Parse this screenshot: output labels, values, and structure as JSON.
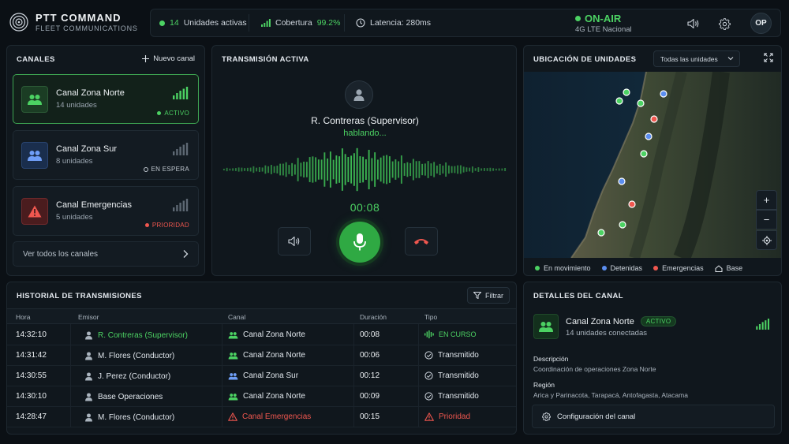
{
  "app": {
    "title": "PTT COMMAND",
    "subtitle": "FLEET COMMUNICATIONS"
  },
  "status": {
    "units_count": "14",
    "units_label": "Unidades activas",
    "coverage_label": "Cobertura",
    "coverage_value": "99.2%",
    "latency_label": "Latencia: 280ms",
    "onair_label": "ON-AIR",
    "network": "4G LTE Nacional",
    "user_initials": "OP"
  },
  "channels": {
    "title": "CANALES",
    "new_label": "Nuevo canal",
    "view_all": "Ver todos los canales",
    "items": [
      {
        "name": "Canal Zona Norte",
        "units": "14 unidades",
        "status": "ACTIVO",
        "state": "active"
      },
      {
        "name": "Canal Zona Sur",
        "units": "8 unidades",
        "status": "EN ESPERA",
        "state": "standby"
      },
      {
        "name": "Canal Emergencias",
        "units": "5 unidades",
        "status": "PRIORIDAD",
        "state": "priority"
      }
    ]
  },
  "transmission": {
    "title": "TRANSMISIÓN ACTIVA",
    "speaker": "R. Contreras (Supervisor)",
    "speaker_status": "hablando...",
    "timer": "00:08"
  },
  "map": {
    "title": "UBICACIÓN DE UNIDADES",
    "filter": "Todas las unidades",
    "legend": [
      {
        "label": "En movimiento",
        "color": "#4cd263"
      },
      {
        "label": "Detenidas",
        "color": "#5b8ef0"
      },
      {
        "label": "Emergencias",
        "color": "#f0574f"
      },
      {
        "label": "Base",
        "icon": "home-icon"
      }
    ]
  },
  "history": {
    "title": "HISTORIAL DE TRANSMISIONES",
    "filter_label": "Filtrar",
    "columns": [
      "Hora",
      "Emisor",
      "Canal",
      "Duración",
      "Tipo"
    ],
    "rows": [
      {
        "time": "14:32:10",
        "sender": "R. Contreras (Supervisor)",
        "channel": "Canal Zona Norte",
        "duration": "00:08",
        "type": "EN CURSO",
        "kind": "live"
      },
      {
        "time": "14:31:42",
        "sender": "M. Flores (Conductor)",
        "channel": "Canal Zona Norte",
        "duration": "00:06",
        "type": "Transmitido",
        "kind": "done"
      },
      {
        "time": "14:30:55",
        "sender": "J. Perez (Conductor)",
        "channel": "Canal Zona Sur",
        "duration": "00:12",
        "type": "Transmitido",
        "kind": "done"
      },
      {
        "time": "14:30:10",
        "sender": "Base Operaciones",
        "channel": "Canal Zona Norte",
        "duration": "00:09",
        "type": "Transmitido",
        "kind": "done"
      },
      {
        "time": "14:28:47",
        "sender": "M. Flores (Conductor)",
        "channel": "Canal Emergencias",
        "duration": "00:15",
        "type": "Prioridad",
        "kind": "priority"
      }
    ]
  },
  "details": {
    "title": "DETALLES DEL CANAL",
    "name": "Canal Zona Norte",
    "badge": "ACTIVO",
    "units": "14 unidades conectadas",
    "desc_label": "Descripción",
    "desc_value": "Coordinación de operaciones Zona Norte",
    "region_label": "Región",
    "region_value": "Arica y Parinacota, Tarapacá, Antofagasta, Atacama",
    "config_label": "Configuración del canal"
  }
}
